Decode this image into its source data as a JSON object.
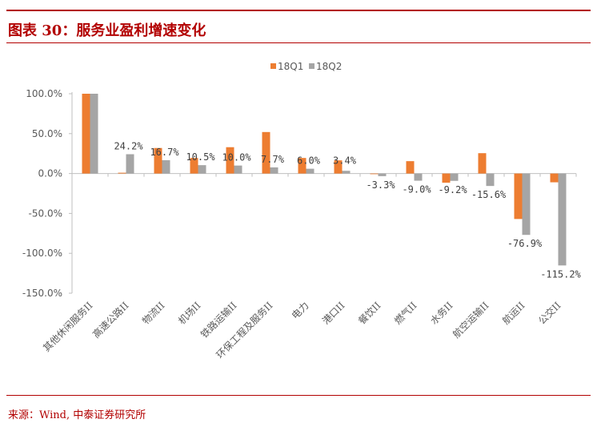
{
  "header": {
    "title": "图表 30：服务业盈利增速变化"
  },
  "source": "来源：Wind, 中泰证券研究所",
  "colors": {
    "series_1": "#ED7D31",
    "series_2": "#A5A5A5",
    "accent": "#B20000",
    "axis_text": "#595959"
  },
  "chart_data": {
    "type": "bar",
    "categories": [
      "其他休闲服务II",
      "高速公路II",
      "物流II",
      "机场II",
      "铁路运输II",
      "环保工程及服务II",
      "电力",
      "港口II",
      "餐饮II",
      "燃气II",
      "水务II",
      "航空运输II",
      "航运II",
      "公交II"
    ],
    "series": [
      {
        "name": "18Q1",
        "values": [
          100.0,
          1.0,
          32.0,
          19.5,
          33.0,
          52.0,
          19.5,
          16.5,
          -0.5,
          15.5,
          -11.5,
          25.5,
          -57.0,
          -11.0
        ]
      },
      {
        "name": "18Q2",
        "values": [
          100.0,
          24.2,
          16.7,
          10.5,
          10.0,
          7.7,
          6.0,
          3.4,
          -3.3,
          -9.0,
          -9.2,
          -15.6,
          -76.9,
          -115.2
        ]
      }
    ],
    "data_labels": [
      "",
      "24.2%",
      "16.7%",
      "10.5%",
      "10.0%",
      "7.7%",
      "6.0%",
      "3.4%",
      "-3.3%",
      "-9.0%",
      "-9.2%",
      "-15.6%",
      "-76.9%",
      "-115.2%"
    ],
    "y_ticks": [
      "100.0%",
      "50.0%",
      "0.0%",
      "-50.0%",
      "-100.0%",
      "-150.0%"
    ],
    "ylim": [
      -150,
      100
    ],
    "legend_position": "top-center",
    "grid": false
  }
}
